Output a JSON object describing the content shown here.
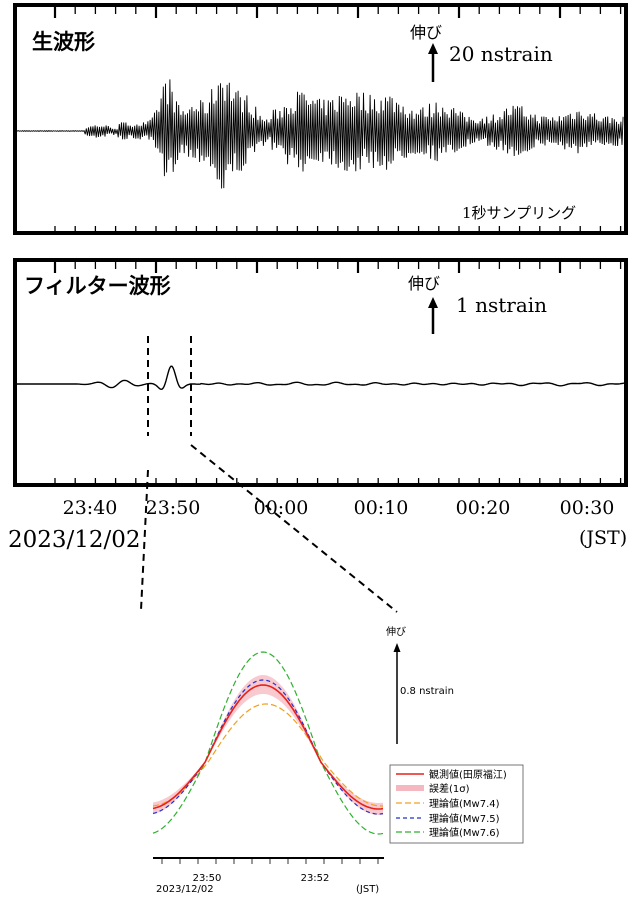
{
  "chart_data": [
    {
      "type": "line",
      "title": "生波形",
      "scale_bar": {
        "direction": "伸び",
        "label": "20 nstrain"
      },
      "note": "1秒サンプリング"
    },
    {
      "type": "line",
      "title": "フィルター波形",
      "scale_bar": {
        "direction": "伸び",
        "label": "1 nstrain"
      }
    },
    {
      "type": "line",
      "x_axis": {
        "ticks": [
          "23:40",
          "23:50",
          "00:00",
          "00:10",
          "00:20",
          "00:30"
        ],
        "date": "2023/12/02",
        "unit": "(JST)"
      }
    },
    {
      "type": "line",
      "scale_bar": {
        "direction": "伸び",
        "label": "0.8 nstrain"
      },
      "x_axis": {
        "ticks": [
          "23:50",
          "23:52"
        ],
        "date": "2023/12/02",
        "unit": "(JST)"
      },
      "legend": {
        "placement": "bottom-right",
        "entries": [
          {
            "label": "観測値(田原福江)",
            "color": "#e8201c",
            "style": "solid"
          },
          {
            "label": "誤差(1σ)",
            "color": "#f6b8c0",
            "style": "band"
          },
          {
            "label": "理論値(Mw7.4)",
            "color": "#f0a020",
            "style": "dash"
          },
          {
            "label": "理論値(Mw7.5)",
            "color": "#2030d0",
            "style": "dash"
          },
          {
            "label": "理論値(Mw7.6)",
            "color": "#30b030",
            "style": "dash"
          }
        ]
      }
    }
  ]
}
